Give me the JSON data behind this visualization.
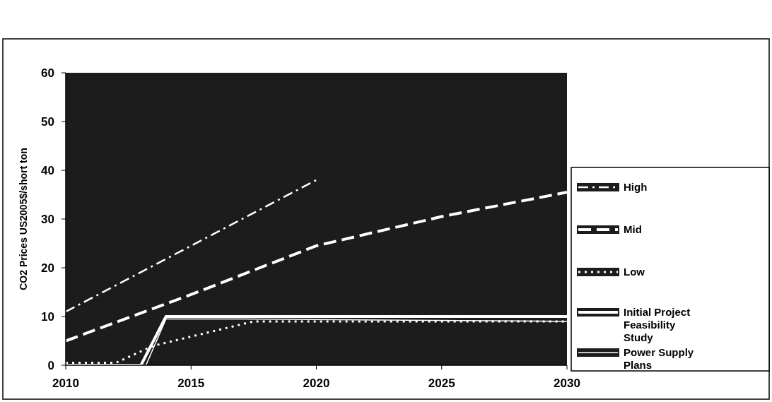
{
  "chart_data": {
    "type": "line",
    "ylabel": "CO2 Prices US2005$/short ton",
    "xlim": [
      2010,
      2030
    ],
    "xticks": [
      2010,
      2015,
      2020,
      2025,
      2030
    ],
    "ylim": [
      0,
      60
    ],
    "yticks": [
      0,
      10,
      20,
      30,
      40,
      50,
      60
    ],
    "legend": "right",
    "grid": false,
    "series": [
      {
        "name": "High",
        "color": "#ffffff",
        "line_style": "dashed",
        "x": [
          2010,
          2015,
          2020
        ],
        "values": [
          11,
          24.5,
          38
        ]
      },
      {
        "name": "Mid",
        "color": "#ffffff",
        "line_style": "dashed",
        "x": [
          2010,
          2015,
          2020,
          2025,
          2030
        ],
        "values": [
          5,
          14.5,
          24.5,
          30.5,
          35.5
        ]
      },
      {
        "name": "Low",
        "color": "#ffffff",
        "line_style": "dotted",
        "x": [
          2010,
          2012,
          2013.5,
          2017.5,
          2030
        ],
        "values": [
          0.5,
          0.5,
          4,
          9,
          9
        ]
      },
      {
        "name": "Initial Project Feasibility Study",
        "color": "#ffffff",
        "line_style": "solid",
        "x": [
          2010,
          2013,
          2014,
          2030
        ],
        "values": [
          0,
          0,
          10,
          10
        ]
      },
      {
        "name": "Power Supply Plans",
        "color": "#ffffff",
        "line_style": "solid",
        "x": [
          2010,
          2013.2,
          2014,
          2017,
          2030
        ],
        "values": [
          0,
          0,
          9.5,
          9.5,
          9
        ]
      }
    ]
  }
}
